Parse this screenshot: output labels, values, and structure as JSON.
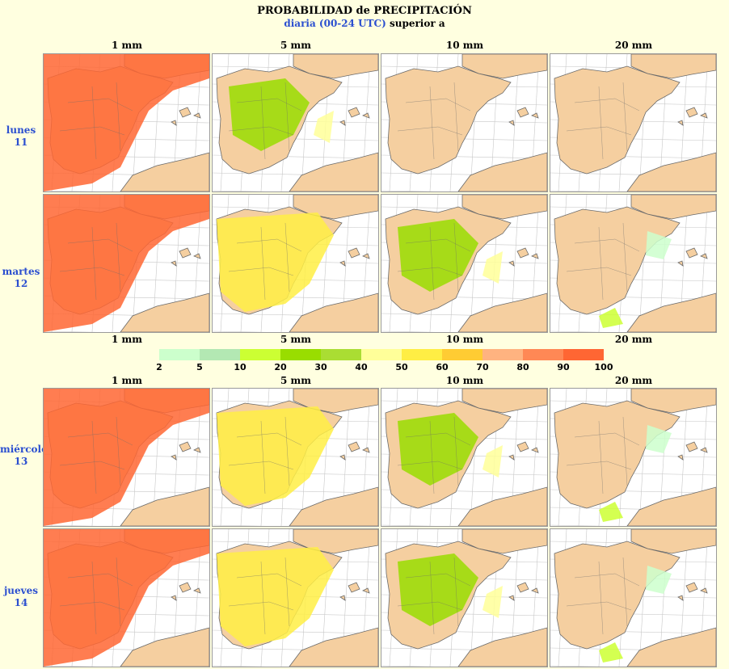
{
  "title": "PROBABILIDAD de PRECIPITACIÓN",
  "subtitle_blue": "diaria (00-24 UTC)",
  "subtitle_black": " superior a",
  "thresholds": [
    "1 mm",
    "5 mm",
    "10 mm",
    "20 mm"
  ],
  "days": [
    {
      "name": "lunes",
      "num": "11"
    },
    {
      "name": "martes",
      "num": "12"
    },
    {
      "name": "miércoles",
      "num": "13"
    },
    {
      "name": "jueves",
      "num": "14"
    }
  ],
  "legend": {
    "ticks": [
      "2",
      "5",
      "10",
      "20",
      "30",
      "40",
      "50",
      "60",
      "70",
      "80",
      "90",
      "100"
    ],
    "colors": [
      "#ccffcc",
      "#b3e8b3",
      "#ccff33",
      "#99dd00",
      "#aadd33",
      "#ffff99",
      "#ffee44",
      "#ffcc33",
      "#ffb380",
      "#ff8855",
      "#ff6633"
    ]
  },
  "map_colors": {
    "sea": "#ffffff",
    "land": "#f5cfa0",
    "grid": "#c8c8c8",
    "border": "#6a6a6a"
  },
  "map_levels": [
    [
      4,
      2,
      0,
      0
    ],
    [
      4,
      3,
      2,
      1
    ],
    [
      4,
      3,
      2,
      1
    ],
    [
      4,
      3,
      2,
      1
    ]
  ]
}
